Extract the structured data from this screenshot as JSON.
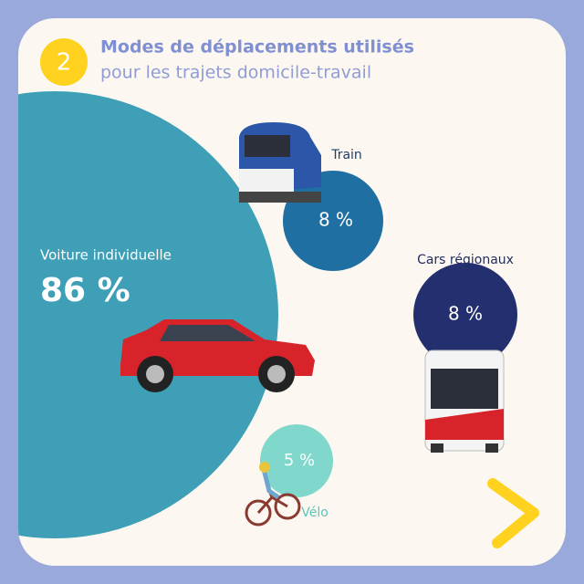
{
  "header": {
    "number": "2",
    "title": "Modes de déplacements utilisés",
    "subtitle": "pour les trajets domicile-travail"
  },
  "modes": [
    {
      "label": "Voiture individuelle",
      "value": "86 %"
    },
    {
      "label": "Train",
      "value": "8 %"
    },
    {
      "label": "Cars régionaux",
      "value": "8 %"
    },
    {
      "label": "Vélo",
      "value": "5 %"
    }
  ]
}
